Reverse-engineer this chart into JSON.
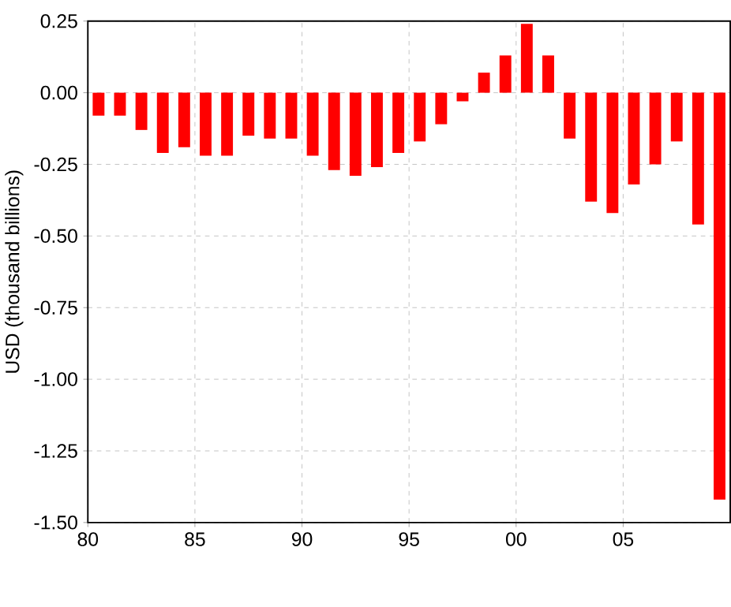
{
  "chart_data": {
    "type": "bar",
    "ylabel": "USD (thousand billions)",
    "x": [
      1980.5,
      1981.5,
      1982.5,
      1983.5,
      1984.5,
      1985.5,
      1986.5,
      1987.5,
      1988.5,
      1989.5,
      1990.5,
      1991.5,
      1992.5,
      1993.5,
      1994.5,
      1995.5,
      1996.5,
      1997.5,
      1998.5,
      1999.5,
      2000.5,
      2001.5,
      2002.5,
      2003.5,
      2004.5,
      2005.5,
      2006.5,
      2007.5,
      2008.5,
      2009.5
    ],
    "values": [
      -0.08,
      -0.08,
      -0.13,
      -0.21,
      -0.19,
      -0.22,
      -0.22,
      -0.15,
      -0.16,
      -0.16,
      -0.22,
      -0.27,
      -0.29,
      -0.26,
      -0.21,
      -0.17,
      -0.11,
      -0.03,
      0.07,
      0.13,
      0.24,
      0.13,
      -0.16,
      -0.38,
      -0.42,
      -0.32,
      -0.25,
      -0.17,
      -0.46,
      -1.42
    ],
    "color": "#ff0000",
    "xlim": [
      1980,
      2010
    ],
    "xticks": [
      {
        "value": 1980,
        "label": "80"
      },
      {
        "value": 1985,
        "label": "85"
      },
      {
        "value": 1990,
        "label": "90"
      },
      {
        "value": 1995,
        "label": "95"
      },
      {
        "value": 2000,
        "label": "00"
      },
      {
        "value": 2005,
        "label": "05"
      }
    ],
    "ylim": [
      -1.5,
      0.25
    ],
    "yticks": [
      {
        "value": -1.5,
        "label": "-1.50"
      },
      {
        "value": -1.25,
        "label": "-1.25"
      },
      {
        "value": -1.0,
        "label": "-1.00"
      },
      {
        "value": -0.75,
        "label": "-0.75"
      },
      {
        "value": -0.5,
        "label": "-0.50"
      },
      {
        "value": -0.25,
        "label": "-0.25"
      },
      {
        "value": 0,
        "label": "0.00"
      },
      {
        "value": 0.25,
        "label": "0.25"
      }
    ],
    "grid": true
  }
}
